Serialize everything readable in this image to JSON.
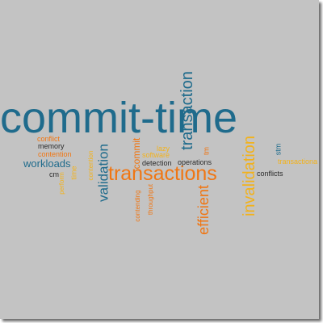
{
  "colors": {
    "background": "#c3c3c3",
    "shadow": "#6e6e6e",
    "blue": "#1f6b8c",
    "orange": "#f07613",
    "gold": "#f2b21c",
    "dark": "#2a2a2a"
  },
  "words": {
    "commit_time": "commit-time",
    "transactions": "transactions",
    "transaction": "transaction",
    "invalidation": "invalidation",
    "efficient": "efficient",
    "validation": "validation",
    "workloads": "workloads",
    "commit": "commit",
    "conflicts": "conflicts",
    "conflict": "conflict",
    "memory": "memory",
    "contention": "contention",
    "cm": "cm",
    "time": "time",
    "perform": "perform",
    "operations": "operations",
    "detection": "detection",
    "software": "software",
    "lazy": "lazy",
    "tm": "tm",
    "stm": "stm",
    "transactiona": "transactiona",
    "contending": "contending",
    "throughput": "throughput",
    "contention_v": "contention"
  }
}
